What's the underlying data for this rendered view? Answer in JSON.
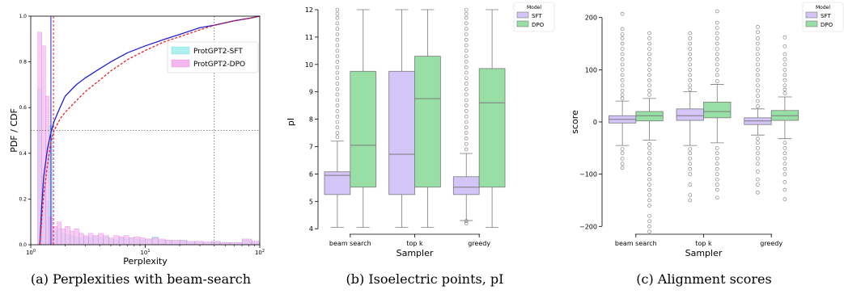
{
  "colors": {
    "sft_box": "#d4c4f7",
    "dpo_box": "#98dfa6",
    "box_edge": "#7a7a7a",
    "sft_hist": "#aef0f0",
    "dpo_hist": "#f4b8ef",
    "sft_cdf": "#1f1fd6",
    "dpo_cdf": "#e8202a"
  },
  "captions": {
    "a": "(a) Perplexities with beam-search",
    "b": "(b) Isoelectric points, pI",
    "c": "(c) Alignment scores"
  },
  "chart_data": [
    {
      "type": "histogram",
      "xlabel": "Perplexity",
      "ylabel": "PDF / CDF",
      "x_scale": "log",
      "xlim": [
        1,
        100
      ],
      "ylim": [
        0,
        1
      ],
      "x_tick_labels": [
        "10^0",
        "10^1",
        "10^2"
      ],
      "y_tick_labels": [
        "0.0",
        "0.2",
        "0.4",
        "0.6",
        "0.8",
        "1.0"
      ],
      "legend": {
        "position": "upper-right",
        "entries": [
          "ProtGPT2-SFT",
          "ProtGPT2-DPO"
        ]
      },
      "series": [
        {
          "name": "ProtGPT2-SFT",
          "bin_edges": [
            1.15,
            1.25,
            1.35,
            1.45,
            1.55,
            1.7,
            1.85,
            2.0,
            2.2,
            2.4,
            2.65,
            2.9,
            3.2,
            3.5,
            3.9,
            4.3,
            4.8,
            5.3,
            5.9,
            6.5,
            7.2,
            8.0,
            9.0,
            10.0,
            11.5,
            13.0,
            15.0,
            17.0,
            20.0,
            23.0,
            27.0,
            32.0,
            38.0,
            45.0,
            55.0,
            70.0,
            85.0,
            100.0
          ],
          "density": [
            0.68,
            0.27,
            0.19,
            0.52,
            0.06,
            0.07,
            0.05,
            0.045,
            0.04,
            0.035,
            0.03,
            0.035,
            0.03,
            0.04,
            0.03,
            0.035,
            0.025,
            0.02,
            0.03,
            0.025,
            0.03,
            0.025,
            0.02,
            0.025,
            0.035,
            0.02,
            0.018,
            0.015,
            0.02,
            0.012,
            0.015,
            0.01,
            0.012,
            0.01,
            0.008,
            0.02,
            0.012
          ]
        },
        {
          "name": "ProtGPT2-DPO",
          "bin_edges": [
            1.15,
            1.25,
            1.35,
            1.45,
            1.55,
            1.7,
            1.85,
            2.0,
            2.2,
            2.4,
            2.65,
            2.9,
            3.2,
            3.5,
            3.9,
            4.3,
            4.8,
            5.3,
            5.9,
            6.5,
            7.2,
            8.0,
            9.0,
            10.0,
            11.5,
            13.0,
            15.0,
            17.0,
            20.0,
            23.0,
            27.0,
            32.0,
            38.0,
            45.0,
            55.0,
            70.0,
            85.0,
            100.0
          ],
          "density": [
            0.93,
            0.87,
            0.65,
            0.12,
            0.08,
            0.1,
            0.07,
            0.08,
            0.06,
            0.07,
            0.05,
            0.04,
            0.05,
            0.04,
            0.05,
            0.04,
            0.03,
            0.04,
            0.035,
            0.04,
            0.03,
            0.035,
            0.03,
            0.025,
            0.03,
            0.025,
            0.02,
            0.02,
            0.018,
            0.015,
            0.015,
            0.012,
            0.015,
            0.01,
            0.01,
            0.025,
            0.015
          ]
        }
      ],
      "cdf": [
        {
          "name": "ProtGPT2-SFT",
          "x": [
            1.2,
            1.25,
            1.3,
            1.4,
            1.5,
            1.6,
            1.8,
            2.0,
            2.5,
            3.0,
            4.0,
            5.0,
            7.0,
            10.0,
            15.0,
            20.0,
            30.0,
            40.0,
            60.0,
            80.0,
            100.0
          ],
          "y": [
            0.0,
            0.18,
            0.3,
            0.42,
            0.49,
            0.54,
            0.6,
            0.65,
            0.7,
            0.73,
            0.77,
            0.8,
            0.84,
            0.87,
            0.9,
            0.92,
            0.95,
            0.96,
            0.98,
            0.99,
            1.0
          ]
        },
        {
          "name": "ProtGPT2-DPO",
          "x": [
            1.2,
            1.25,
            1.3,
            1.4,
            1.5,
            1.6,
            1.8,
            2.0,
            2.5,
            3.0,
            4.0,
            5.0,
            7.0,
            10.0,
            15.0,
            20.0,
            30.0,
            40.0,
            60.0,
            80.0,
            100.0
          ],
          "y": [
            0.0,
            0.12,
            0.22,
            0.35,
            0.45,
            0.5,
            0.55,
            0.58,
            0.63,
            0.67,
            0.72,
            0.76,
            0.81,
            0.85,
            0.89,
            0.91,
            0.94,
            0.96,
            0.98,
            0.99,
            1.0
          ]
        }
      ],
      "reference_lines": {
        "vertical": [
          1.5,
          1.58,
          40.0
        ],
        "horizontal": [
          0.5
        ]
      }
    },
    {
      "type": "box",
      "xlabel": "Sampler",
      "ylabel": "pI",
      "categories": [
        "beam search",
        "top k",
        "greedy"
      ],
      "ylim": [
        3.8,
        12.0
      ],
      "y_ticks": [
        4,
        5,
        6,
        7,
        8,
        9,
        10,
        11,
        12
      ],
      "legend": {
        "title": "Model",
        "position": "upper-right",
        "entries": [
          "SFT",
          "DPO"
        ]
      },
      "series": [
        {
          "name": "SFT",
          "boxes": [
            {
              "whislo": 4.05,
              "q1": 5.25,
              "med": 5.95,
              "q3": 6.08,
              "whishi": 7.2,
              "fliers": [
                7.35,
                7.5,
                7.7,
                7.9,
                8.1,
                8.3,
                8.5,
                8.7,
                8.9,
                9.1,
                9.3,
                9.5,
                9.7,
                9.9,
                10.1,
                10.3,
                10.5,
                10.7,
                10.9,
                11.1,
                11.3,
                11.5,
                11.7,
                11.85,
                12.0
              ]
            },
            {
              "whislo": 4.05,
              "q1": 5.25,
              "med": 6.72,
              "q3": 9.75,
              "whishi": 12.0,
              "fliers": []
            },
            {
              "whislo": 4.3,
              "q1": 5.25,
              "med": 5.52,
              "q3": 5.9,
              "whishi": 6.75,
              "fliers": [
                4.2,
                4.28,
                6.9,
                7.1,
                7.3,
                7.5,
                7.7,
                7.9,
                8.1,
                8.3,
                8.5,
                8.7,
                8.9,
                9.1,
                9.3,
                9.5,
                9.7,
                9.9,
                10.1,
                10.3,
                10.5,
                10.7,
                10.9,
                11.1,
                11.3,
                11.5,
                11.7,
                11.85,
                12.0
              ]
            }
          ]
        },
        {
          "name": "DPO",
          "boxes": [
            {
              "whislo": 4.05,
              "q1": 5.52,
              "med": 7.05,
              "q3": 9.75,
              "whishi": 12.0,
              "fliers": []
            },
            {
              "whislo": 4.05,
              "q1": 5.52,
              "med": 8.75,
              "q3": 10.3,
              "whishi": 12.0,
              "fliers": []
            },
            {
              "whislo": 4.05,
              "q1": 5.52,
              "med": 8.6,
              "q3": 9.85,
              "whishi": 12.0,
              "fliers": []
            }
          ]
        }
      ]
    },
    {
      "type": "box",
      "xlabel": "Sampler",
      "ylabel": "score",
      "categories": [
        "beam search",
        "top k",
        "greedy"
      ],
      "ylim": [
        -215,
        215
      ],
      "y_ticks": [
        -200,
        -100,
        0,
        100,
        200
      ],
      "legend": {
        "title": "Model",
        "position": "upper-right",
        "entries": [
          "SFT",
          "DPO"
        ]
      },
      "series": [
        {
          "name": "SFT",
          "boxes": [
            {
              "whislo": -45,
              "q1": -2,
              "med": 5,
              "q3": 12,
              "whishi": 40,
              "fliers": [
                -88,
                -80,
                -70,
                -60,
                -52,
                45,
                52,
                60,
                70,
                80,
                90,
                100,
                110,
                120,
                130,
                140,
                150,
                160,
                168,
                178,
                207
              ]
            },
            {
              "whislo": -45,
              "q1": 3,
              "med": 12,
              "q3": 25,
              "whishi": 58,
              "fliers": [
                -150,
                -140,
                -120,
                -100,
                -90,
                -80,
                -70,
                -60,
                -52,
                62,
                70,
                80,
                90,
                100,
                110,
                120,
                130,
                140,
                150,
                160,
                170
              ]
            },
            {
              "whislo": -25,
              "q1": -5,
              "med": 2,
              "q3": 8,
              "whishi": 25,
              "fliers": [
                -135,
                -120,
                -110,
                -95,
                -80,
                -70,
                -60,
                -50,
                -40,
                -32,
                30,
                40,
                50,
                60,
                70,
                80,
                90,
                100,
                110,
                120,
                130,
                140,
                150,
                160,
                172,
                182
              ]
            }
          ]
        },
        {
          "name": "DPO",
          "boxes": [
            {
              "whislo": -35,
              "q1": 2,
              "med": 12,
              "q3": 20,
              "whishi": 45,
              "fliers": [
                -210,
                -200,
                -190,
                -180,
                -160,
                -150,
                -140,
                -130,
                -120,
                -110,
                -100,
                -90,
                -80,
                -70,
                -60,
                -50,
                -42,
                52,
                60,
                70,
                80,
                90,
                100,
                110,
                120,
                130,
                140,
                150,
                160,
                170
              ]
            },
            {
              "whislo": -40,
              "q1": 8,
              "med": 20,
              "q3": 38,
              "whishi": 72,
              "fliers": [
                -145,
                -130,
                -120,
                -110,
                -100,
                -90,
                -80,
                -70,
                -60,
                -50,
                78,
                90,
                100,
                110,
                120,
                130,
                140,
                150,
                160,
                170,
                180,
                190,
                212
              ]
            },
            {
              "whislo": -32,
              "q1": 3,
              "med": 12,
              "q3": 22,
              "whishi": 48,
              "fliers": [
                -148,
                -130,
                -115,
                -100,
                -90,
                -80,
                -70,
                -60,
                -50,
                -40,
                55,
                62,
                70,
                80,
                90,
                100,
                110,
                120,
                130,
                145,
                162
              ]
            }
          ]
        }
      ]
    }
  ]
}
